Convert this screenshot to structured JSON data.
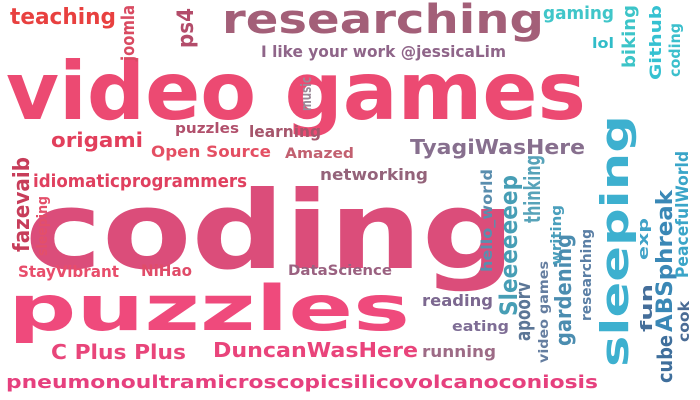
{
  "words": [
    {
      "text": "video games",
      "color": "#ec4a72"
    },
    {
      "text": "coding",
      "color": "#db4d7a"
    },
    {
      "text": "puzzles",
      "color": "#ef4a7c"
    },
    {
      "text": "researching",
      "color": "#a35f78"
    },
    {
      "text": "sleeping",
      "color": "#3db0cf"
    },
    {
      "text": "pneumonoultramicroscopicsilicovolcanoconiosis",
      "color": "#e6407e"
    },
    {
      "text": "teaching",
      "color": "#e8403f"
    },
    {
      "text": "joomla",
      "color": "#d94b62"
    },
    {
      "text": "ps4",
      "color": "#b34c6a"
    },
    {
      "text": "gaming",
      "color": "#40c6c9"
    },
    {
      "text": "biking",
      "color": "#3cc4c8"
    },
    {
      "text": "Github",
      "color": "#35c1d1"
    },
    {
      "text": "coding",
      "color": "#3bbfcc"
    },
    {
      "text": "lol",
      "color": "#30bcc8"
    },
    {
      "text": "I like your work @jessicaLim",
      "color": "#8f6589"
    },
    {
      "text": "music",
      "color": "#9b8a98"
    },
    {
      "text": "origami",
      "color": "#e23f5c"
    },
    {
      "text": "puzzles",
      "color": "#b1506c"
    },
    {
      "text": "learning",
      "color": "#a6566c"
    },
    {
      "text": "Open Source",
      "color": "#e44f63"
    },
    {
      "text": "Amazed",
      "color": "#c26070"
    },
    {
      "text": "TyagiWasHere",
      "color": "#876f8e"
    },
    {
      "text": "networking",
      "color": "#94637a"
    },
    {
      "text": "idiomaticprogrammers",
      "color": "#e0405f"
    },
    {
      "text": "fazevaib",
      "color": "#c73d5a"
    },
    {
      "text": "sleeping",
      "color": "#e34f6a"
    },
    {
      "text": "StayVibrant",
      "color": "#e84d6b"
    },
    {
      "text": "NiHao",
      "color": "#e04c69"
    },
    {
      "text": "DataScience",
      "color": "#9a6180"
    },
    {
      "text": "C Plus Plus",
      "color": "#e8457a"
    },
    {
      "text": "DuncanWasHere",
      "color": "#e9447b"
    },
    {
      "text": "running",
      "color": "#9d6b86"
    },
    {
      "text": "reading",
      "color": "#7c6890"
    },
    {
      "text": "eating",
      "color": "#7e6d95"
    },
    {
      "text": "hello_world",
      "color": "#5a8eae"
    },
    {
      "text": "Sleeeeeeep",
      "color": "#479eb5"
    },
    {
      "text": "thinking",
      "color": "#57a3b9"
    },
    {
      "text": "apoorv",
      "color": "#5b7696"
    },
    {
      "text": "writing",
      "color": "#4a9fbc"
    },
    {
      "text": "video games",
      "color": "#657ea0"
    },
    {
      "text": "gardening",
      "color": "#4b8db0"
    },
    {
      "text": "researching",
      "color": "#5b7fa5"
    },
    {
      "text": "fun",
      "color": "#446e9a"
    },
    {
      "text": "cube",
      "color": "#3f6f9c"
    },
    {
      "text": "ABSphreak",
      "color": "#3a88b6"
    },
    {
      "text": "exp",
      "color": "#41a3c8"
    },
    {
      "text": "PeacefulWorld",
      "color": "#3aa5c8"
    },
    {
      "text": "cook",
      "color": "#4a6c95"
    }
  ]
}
